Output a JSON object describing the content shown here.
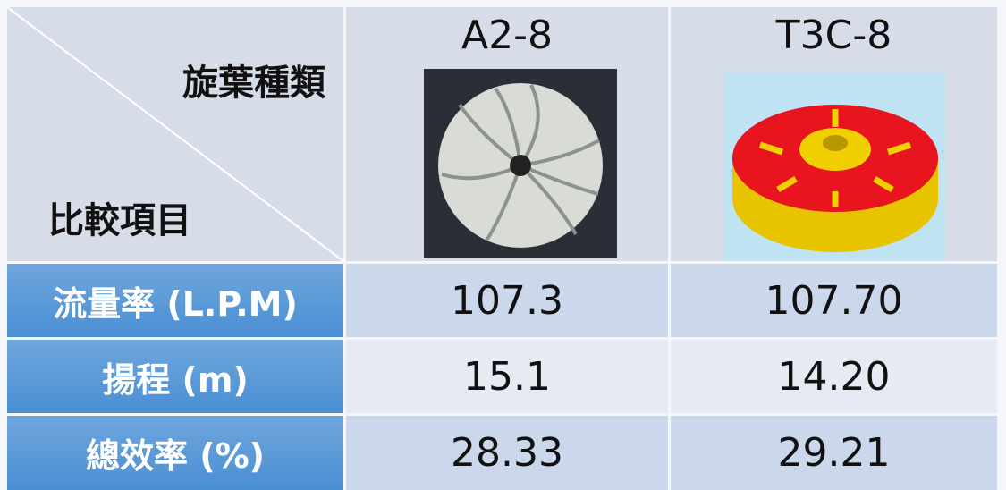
{
  "header": {
    "corner_top": "旋葉種類",
    "corner_bottom": "比較項目",
    "columns": [
      "A2-8",
      "T3C-8"
    ]
  },
  "table": {
    "rows": [
      [
        "流量率 (L.P.M)",
        "107.3",
        "107.70"
      ],
      [
        "揚程 (m)",
        "15.1",
        "14.20"
      ],
      [
        "總效率 (%)",
        "28.33",
        "29.21"
      ]
    ]
  }
}
